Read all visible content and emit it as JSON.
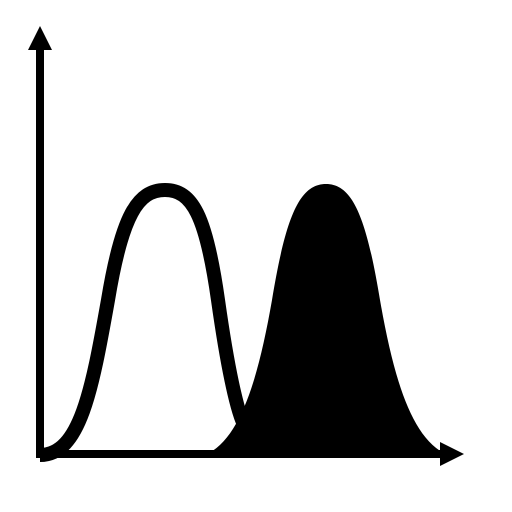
{
  "icon": {
    "name": "two-bell-curves-distribution-icon",
    "background_color": "#ffffff",
    "foreground_color": "#000000",
    "curves": [
      {
        "name": "outlined-bell-curve",
        "style": "outline"
      },
      {
        "name": "filled-bell-curve",
        "style": "filled"
      }
    ]
  }
}
